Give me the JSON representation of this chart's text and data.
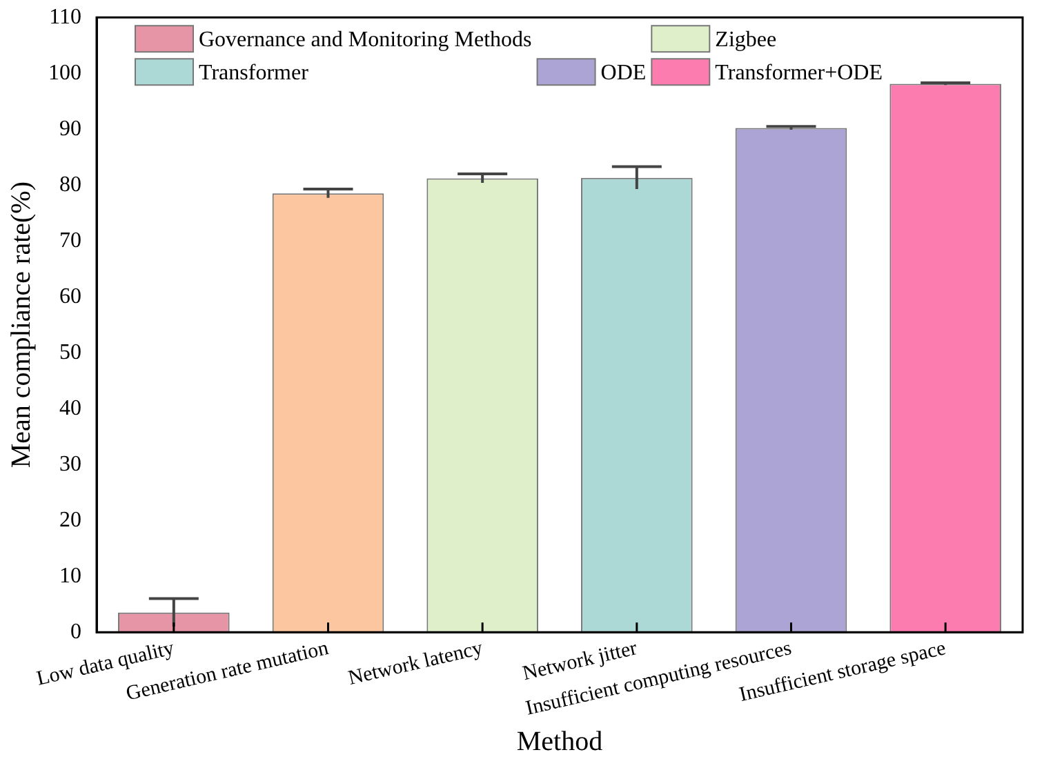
{
  "chart_data": {
    "type": "bar",
    "xlabel": "Method",
    "ylabel": "Mean compliance rate(%)",
    "categories": [
      "Low data quality",
      "Generation rate mutation",
      "Network latency",
      "Network jitter",
      "Insufficient computing resources",
      "Insufficient storage space"
    ],
    "series": [
      {
        "name": "Governance and Monitoring Methods",
        "color": "#e595a6",
        "values": [
          3.5,
          null,
          null,
          null,
          null,
          null
        ],
        "errors": [
          2.5,
          null,
          null,
          null,
          null,
          null
        ]
      },
      {
        "color": "#fbc6a0",
        "values": [
          null,
          78.5,
          null,
          null,
          null,
          null
        ],
        "errors": [
          null,
          0.8,
          null,
          null,
          null,
          null
        ]
      },
      {
        "name": "Zigbee",
        "color": "#dfefca",
        "values": [
          null,
          null,
          81.2,
          null,
          null,
          null
        ],
        "errors": [
          null,
          null,
          0.8,
          null,
          null,
          null
        ]
      },
      {
        "name": "Transformer",
        "color": "#acd9d5",
        "values": [
          null,
          null,
          null,
          81.3,
          null,
          null
        ],
        "errors": [
          null,
          null,
          null,
          2,
          null,
          null
        ]
      },
      {
        "name": "ODE",
        "color": "#aca4d4",
        "values": [
          null,
          null,
          null,
          null,
          90.2,
          null
        ],
        "errors": [
          null,
          null,
          null,
          null,
          0.3,
          null
        ]
      },
      {
        "name": "Transformer+ODE",
        "color": "#fd7cb0",
        "values": [
          null,
          null,
          null,
          null,
          null,
          98.1
        ],
        "errors": [
          null,
          null,
          null,
          null,
          null,
          0.2
        ]
      }
    ],
    "ylim": [
      0,
      110
    ],
    "yticks": [
      0,
      10,
      20,
      30,
      40,
      50,
      60,
      70,
      80,
      90,
      100,
      110
    ],
    "grid": false,
    "legend": "top"
  }
}
